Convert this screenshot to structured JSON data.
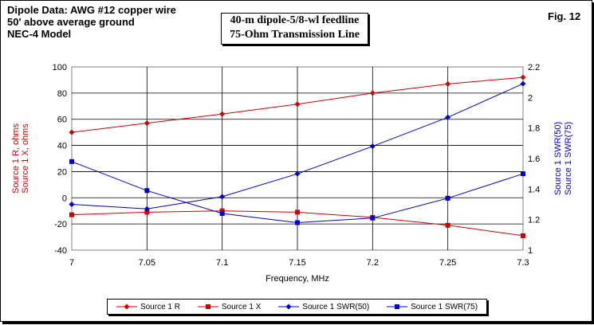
{
  "header": {
    "line1": "Dipole Data:  AWG #12 copper wire",
    "line2": "50' above average ground",
    "line3": "NEC-4 Model"
  },
  "title_box": {
    "line1": "40-m dipole-5/8-wl feedline",
    "line2": "75-Ohm Transmission Line"
  },
  "fig_label": "Fig. 12",
  "chart_data": {
    "type": "line",
    "xlabel": "Frequency, MHz",
    "ylabel_left": [
      "Source 1 R, ohms",
      "Source 1 X, ohms"
    ],
    "ylabel_right": [
      "Source 1 SWR(50)",
      "Source 1 SWR(75)"
    ],
    "x": [
      7,
      7.05,
      7.1,
      7.15,
      7.2,
      7.25,
      7.3
    ],
    "x_tick_labels": [
      "7",
      "7.05",
      "7.1",
      "7.15",
      "7.2",
      "7.25",
      "7.3"
    ],
    "xlim": [
      7,
      7.3
    ],
    "ylim_left": [
      -40,
      100
    ],
    "yticks_left": [
      -40,
      -20,
      0,
      20,
      40,
      60,
      80,
      100
    ],
    "ylim_right": [
      1,
      2.2
    ],
    "yticks_right": [
      "1",
      "1.2",
      "1.4",
      "1.6",
      "1.8",
      "2",
      "2.2"
    ],
    "grid": true,
    "legend_position": "bottom",
    "series": [
      {
        "name": "Source 1 R",
        "axis": "left",
        "marker": "diamond",
        "color": "#cc0000",
        "values": [
          50,
          57,
          64,
          71.5,
          80,
          87,
          92
        ]
      },
      {
        "name": "Source 1 X",
        "axis": "left",
        "marker": "square",
        "color": "#cc0000",
        "values": [
          -13,
          -11,
          -10,
          -11,
          -15,
          -21,
          -29
        ]
      },
      {
        "name": "Source 1 SWR(50)",
        "axis": "right",
        "marker": "diamond",
        "color": "#0000cc",
        "values": [
          1.3,
          1.27,
          1.35,
          1.5,
          1.68,
          1.87,
          2.09
        ]
      },
      {
        "name": "Source 1 SWR(75)",
        "axis": "right",
        "marker": "square",
        "color": "#0000cc",
        "values": [
          1.58,
          1.39,
          1.24,
          1.18,
          1.21,
          1.34,
          1.5
        ]
      }
    ]
  }
}
